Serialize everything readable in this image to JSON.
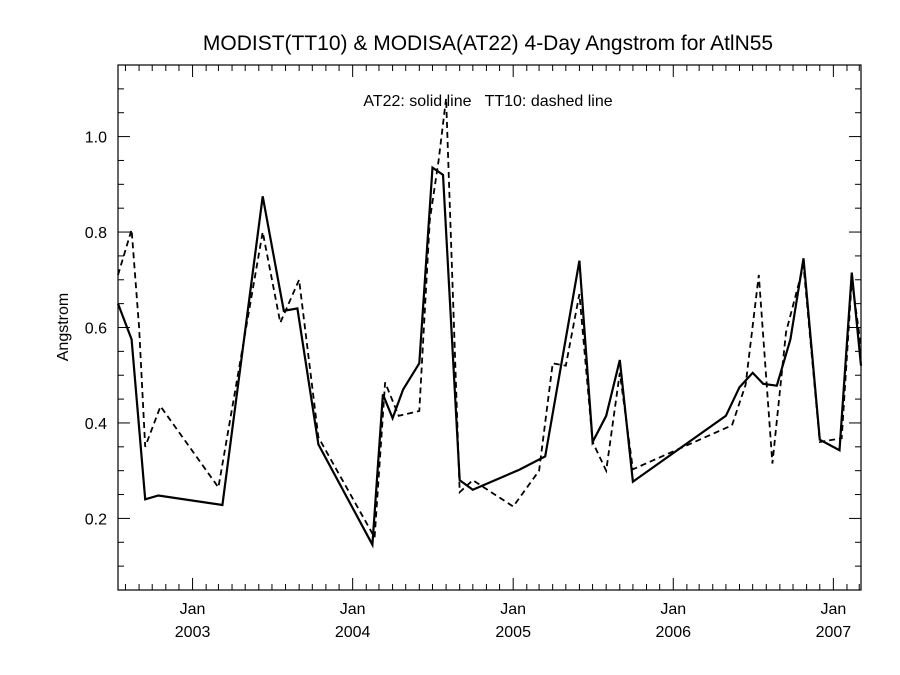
{
  "chart_data": {
    "type": "line",
    "title": "MODIST(TT10) & MODISA(AT22) 4-Day Angstrom for AtlN55",
    "annotation": "AT22: solid line   TT10: dashed line",
    "xlabel": "",
    "ylabel": "Angstrom",
    "ylim": [
      0.05,
      1.15
    ],
    "xlim": [
      "2002-07-15",
      "2007-03-05"
    ],
    "yticks": [
      {
        "value": 0.2,
        "label": "0.2"
      },
      {
        "value": 0.4,
        "label": "0.4"
      },
      {
        "value": 0.6,
        "label": "0.6"
      },
      {
        "value": 0.8,
        "label": "0.8"
      },
      {
        "value": 1.0,
        "label": "1.0"
      }
    ],
    "xticks": [
      {
        "date": "2003-01-01",
        "month": "Jan",
        "year": "2003"
      },
      {
        "date": "2004-01-01",
        "month": "Jan",
        "year": "2004"
      },
      {
        "date": "2005-01-01",
        "month": "Jan",
        "year": "2005"
      },
      {
        "date": "2006-01-01",
        "month": "Jan",
        "year": "2006"
      },
      {
        "date": "2007-01-01",
        "month": "Jan",
        "year": "2007"
      }
    ],
    "series": [
      {
        "name": "AT22",
        "style": "solid",
        "color": "#000000",
        "points": [
          [
            "2002-07-15",
            0.65
          ],
          [
            "2002-08-15",
            0.575
          ],
          [
            "2002-09-15",
            0.24
          ],
          [
            "2002-10-15",
            0.248
          ],
          [
            "2003-03-10",
            0.228
          ],
          [
            "2003-06-10",
            0.875
          ],
          [
            "2003-07-28",
            0.635
          ],
          [
            "2003-08-28",
            0.64
          ],
          [
            "2003-10-15",
            0.355
          ],
          [
            "2004-02-15",
            0.145
          ],
          [
            "2004-03-10",
            0.46
          ],
          [
            "2004-04-01",
            0.41
          ],
          [
            "2004-04-25",
            0.47
          ],
          [
            "2004-06-01",
            0.525
          ],
          [
            "2004-07-01",
            0.935
          ],
          [
            "2004-07-25",
            0.92
          ],
          [
            "2004-09-01",
            0.28
          ],
          [
            "2004-10-01",
            0.26
          ],
          [
            "2005-01-15",
            0.302
          ],
          [
            "2005-03-15",
            0.33
          ],
          [
            "2005-06-01",
            0.74
          ],
          [
            "2005-07-01",
            0.36
          ],
          [
            "2005-08-01",
            0.415
          ],
          [
            "2005-09-01",
            0.532
          ],
          [
            "2005-10-01",
            0.277
          ],
          [
            "2006-05-01",
            0.415
          ],
          [
            "2006-06-01",
            0.475
          ],
          [
            "2006-07-01",
            0.505
          ],
          [
            "2006-07-25",
            0.482
          ],
          [
            "2006-08-25",
            0.478
          ],
          [
            "2006-09-25",
            0.575
          ],
          [
            "2006-10-25",
            0.745
          ],
          [
            "2006-12-01",
            0.365
          ],
          [
            "2007-01-15",
            0.343
          ],
          [
            "2007-02-12",
            0.715
          ],
          [
            "2007-03-05",
            0.52
          ]
        ]
      },
      {
        "name": "TT10",
        "style": "dashed",
        "color": "#000000",
        "points": [
          [
            "2002-07-15",
            0.71
          ],
          [
            "2002-08-15",
            0.805
          ],
          [
            "2002-09-01",
            0.6
          ],
          [
            "2002-09-15",
            0.35
          ],
          [
            "2002-10-20",
            0.435
          ],
          [
            "2003-03-01",
            0.265
          ],
          [
            "2003-06-10",
            0.8
          ],
          [
            "2003-07-20",
            0.61
          ],
          [
            "2003-09-01",
            0.7
          ],
          [
            "2003-10-15",
            0.37
          ],
          [
            "2004-02-20",
            0.16
          ],
          [
            "2004-03-15",
            0.485
          ],
          [
            "2004-04-15",
            0.415
          ],
          [
            "2004-06-01",
            0.425
          ],
          [
            "2004-06-25",
            0.825
          ],
          [
            "2004-07-15",
            0.95
          ],
          [
            "2004-08-01",
            1.08
          ],
          [
            "2004-09-01",
            0.255
          ],
          [
            "2004-10-01",
            0.28
          ],
          [
            "2005-01-01",
            0.225
          ],
          [
            "2005-03-01",
            0.3
          ],
          [
            "2005-04-01",
            0.525
          ],
          [
            "2005-05-01",
            0.52
          ],
          [
            "2005-06-01",
            0.67
          ],
          [
            "2005-07-01",
            0.36
          ],
          [
            "2005-08-01",
            0.3
          ],
          [
            "2005-09-01",
            0.505
          ],
          [
            "2005-10-01",
            0.303
          ],
          [
            "2006-05-15",
            0.395
          ],
          [
            "2006-06-15",
            0.48
          ],
          [
            "2006-07-15",
            0.71
          ],
          [
            "2006-08-15",
            0.315
          ],
          [
            "2006-09-15",
            0.59
          ],
          [
            "2006-10-25",
            0.73
          ],
          [
            "2006-12-01",
            0.36
          ],
          [
            "2007-01-20",
            0.368
          ],
          [
            "2007-02-12",
            0.7
          ],
          [
            "2007-03-05",
            0.56
          ]
        ]
      }
    ]
  }
}
